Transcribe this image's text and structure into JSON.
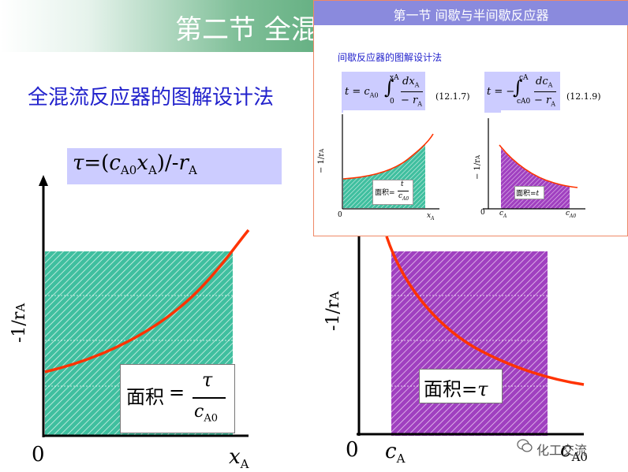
{
  "header": {
    "title": "第二节 全混"
  },
  "subtitle": "全混流反应器的图解设计法",
  "formula": {
    "tau": "τ",
    "eq": "=(",
    "c": "c",
    "c_sub": "A0",
    "x": "x",
    "x_sub": "A",
    "close": ")/-",
    "r": "r",
    "r_sub": "A"
  },
  "left_plot": {
    "ylabel": "-1/r",
    "ylabel_sub": "A",
    "origin": "0",
    "xlabel": "x",
    "xlabel_sub": "A",
    "area_label": "面积",
    "area_eq": "=",
    "area_num": "τ",
    "area_den": "c",
    "area_den_sub": "A0"
  },
  "right_plot": {
    "ylabel": "-1/r",
    "ylabel_sub": "A",
    "origin": "0",
    "x1": "c",
    "x1_sub": "A",
    "x2": "c",
    "x2_sub": "A0",
    "area_label": "面积=",
    "area_tau": "τ"
  },
  "inset": {
    "title": "第一节  间歇与半间歇反应器",
    "subtitle": "间歇反应器的图解设计法",
    "eq1_text": "t = c",
    "eq1_sub": "A0",
    "eq1_num": "dx",
    "eq1_num_sub": "A",
    "eq1_den": "− r",
    "eq1_den_sub": "A",
    "eq1_lim_low": "0",
    "eq1_lim_high": "xA",
    "eq1_number": "(12.1.7)",
    "eq2_text": "t = −",
    "eq2_num": "dc",
    "eq2_num_sub": "A",
    "eq2_den": "− r",
    "eq2_den_sub": "A",
    "eq2_lim_low": "cA0",
    "eq2_lim_high": "cA",
    "eq2_number": "(12.1.9)",
    "plot1_ylabel": "− 1/r",
    "plot1_ylabel_sub": "A",
    "plot1_origin": "0",
    "plot1_x": "x",
    "plot1_x_sub": "A",
    "plot1_area": "面积=",
    "plot1_area_num": "t",
    "plot1_area_den": "c",
    "plot1_area_den_sub": "A0",
    "plot2_ylabel": "− 1/r",
    "plot2_ylabel_sub": "A",
    "plot2_origin": "0",
    "plot2_x1": "c",
    "plot2_x1_sub": "A",
    "plot2_x2": "c",
    "plot2_x2_sub": "A0",
    "plot2_area": "面积=",
    "plot2_area_t": "t"
  },
  "watermark": "化工交流",
  "colors": {
    "teal_fill": "#3fbf9f",
    "magenta_fill": "#a040c0",
    "curve": "#ff3300",
    "formula_bg": "#ccccff",
    "subtitle": "#2222cc",
    "inset_head": "#8a8add"
  }
}
